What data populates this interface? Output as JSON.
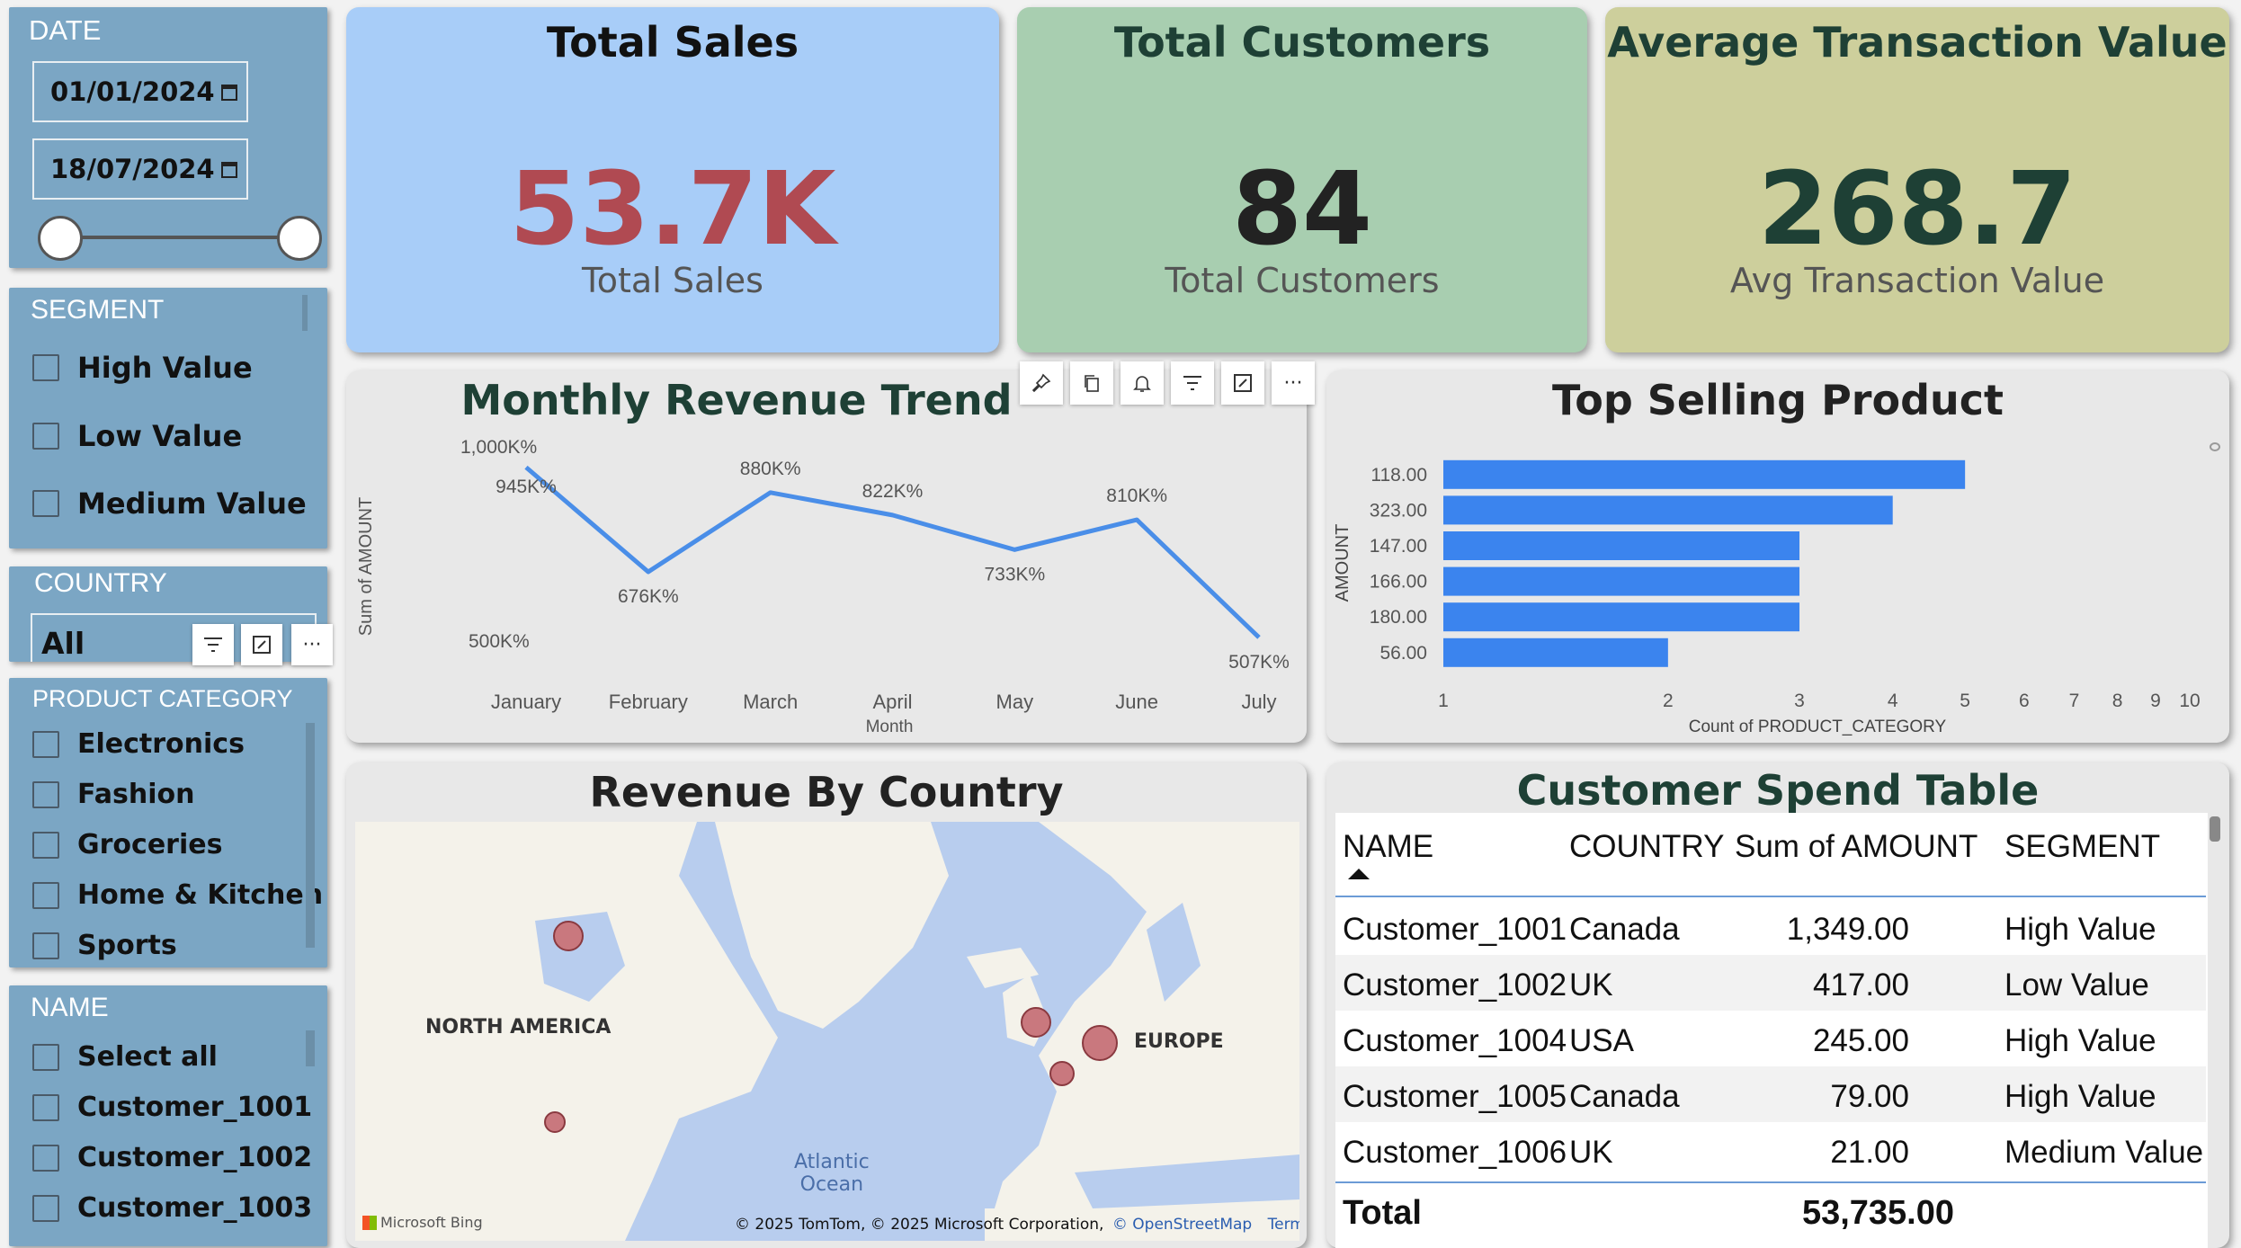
{
  "date_slicer": {
    "title": "DATE",
    "start": "01/01/2024",
    "end": "18/07/2024"
  },
  "segment_slicer": {
    "title": "SEGMENT",
    "items": [
      "High Value",
      "Low Value",
      "Medium Value"
    ]
  },
  "country_slicer": {
    "title": "COUNTRY",
    "selected": "All"
  },
  "product_slicer": {
    "title": "PRODUCT CATEGORY",
    "items": [
      "Electronics",
      "Fashion",
      "Groceries",
      "Home & Kitchen",
      "Sports"
    ]
  },
  "name_slicer": {
    "title": "NAME",
    "items": [
      "Select all",
      "Customer_1001",
      "Customer_1002",
      "Customer_1003"
    ]
  },
  "kpis": [
    {
      "title": "Total Sales",
      "value": "53.7K",
      "label": "Total Sales",
      "bg": "#a8cdf8",
      "value_color": "#b04a52"
    },
    {
      "title": "Total Customers",
      "value": "84",
      "label": "Total Customers",
      "bg": "#a8ceb0",
      "value_color": "#222222"
    },
    {
      "title": "Average Transaction Value",
      "value": "268.7",
      "label": "Avg Transaction Value",
      "bg": "#cdcf9c",
      "value_color": "#1e4035"
    }
  ],
  "line_panel": {
    "title": "Monthly Revenue Trend",
    "toolbar": [
      "pin-icon",
      "copy-icon",
      "bell-icon",
      "filter-icon",
      "focus-icon",
      "more-icon"
    ]
  },
  "bar_panel": {
    "title": "Top Selling Product"
  },
  "map_panel": {
    "title": "Revenue By Country",
    "labels": {
      "north_america": "NORTH AMERICA",
      "europe": "EUROPE",
      "ocean": "Atlantic\nOcean"
    },
    "attribution": "© 2025 TomTom, © 2025 Microsoft Corporation,",
    "osm": "© OpenStreetMap",
    "terms": "Terms",
    "logo": "Microsoft Bing"
  },
  "table_panel": {
    "title": "Customer Spend Table",
    "headers": [
      "NAME",
      "COUNTRY",
      "Sum of AMOUNT",
      "SEGMENT"
    ],
    "rows": [
      [
        "Customer_1001",
        "Canada",
        "1,349.00",
        "High Value"
      ],
      [
        "Customer_1002",
        "UK",
        "417.00",
        "Low Value"
      ],
      [
        "Customer_1004",
        "USA",
        "245.00",
        "High Value"
      ],
      [
        "Customer_1005",
        "Canada",
        "79.00",
        "High Value"
      ],
      [
        "Customer_1006",
        "UK",
        "21.00",
        "Medium Value"
      ]
    ],
    "total_label": "Total",
    "total_value": "53,735.00"
  },
  "chart_data": [
    {
      "type": "line",
      "categories": [
        "January",
        "February",
        "March",
        "April",
        "May",
        "June",
        "July"
      ],
      "values": [
        945,
        676,
        880,
        822,
        733,
        810,
        507
      ],
      "data_labels": [
        "945K%",
        "676K%",
        "880K%",
        "822K%",
        "733K%",
        "810K%",
        "507K%"
      ],
      "xlabel": "Month",
      "ylabel": "Sum of AMOUNT",
      "yticks": [
        "1,000K%",
        "500K%"
      ],
      "ylim": [
        500,
        1000
      ],
      "color": "#4a8ee8"
    },
    {
      "type": "bar",
      "orientation": "horizontal",
      "categories": [
        "118.00",
        "323.00",
        "147.00",
        "166.00",
        "180.00",
        "56.00"
      ],
      "values": [
        5,
        4,
        3,
        3,
        3,
        2
      ],
      "xlabel": "Count of PRODUCT_CATEGORY",
      "ylabel": "AMOUNT",
      "xscale": "log",
      "xticks": [
        "1",
        "2",
        "3",
        "4",
        "5",
        "6",
        "7",
        "8",
        "9",
        "10"
      ],
      "xlim": [
        1,
        10
      ],
      "color": "#3b84ee"
    }
  ]
}
